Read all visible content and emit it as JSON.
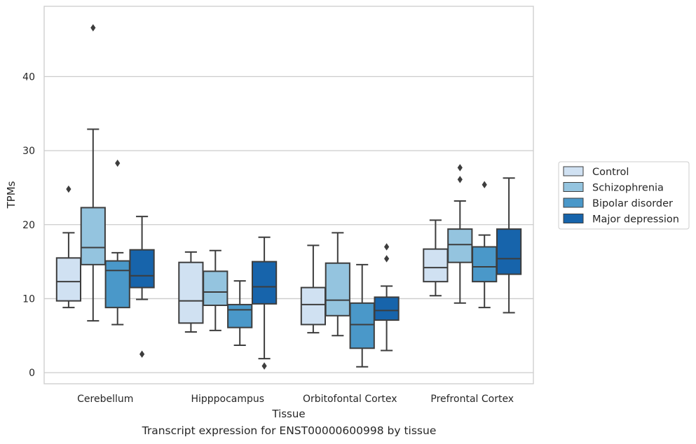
{
  "caption": "Transcript expression for ENST00000600998 by tissue",
  "chart_data": {
    "type": "boxplot",
    "xlabel": "Tissue",
    "ylabel": "TPMs",
    "ylim": [
      -1.5,
      49.5
    ],
    "yticks": [
      0,
      10,
      20,
      30,
      40
    ],
    "grid": "horizontal",
    "legend_position": "right",
    "categories": [
      "Cerebellum",
      "Hipppocampus",
      "Orbitofontal Cortex",
      "Prefrontal Cortex"
    ],
    "series": [
      {
        "name": "Control",
        "color": "#d0e1f2",
        "boxes": [
          {
            "whislo": 8.8,
            "q1": 9.7,
            "med": 12.3,
            "q3": 15.5,
            "whishi": 18.9,
            "fliers": [
              24.8
            ]
          },
          {
            "whislo": 5.5,
            "q1": 6.7,
            "med": 9.7,
            "q3": 14.9,
            "whishi": 16.3,
            "fliers": []
          },
          {
            "whislo": 5.4,
            "q1": 6.5,
            "med": 9.2,
            "q3": 11.5,
            "whishi": 17.2,
            "fliers": []
          },
          {
            "whislo": 10.4,
            "q1": 12.3,
            "med": 14.2,
            "q3": 16.7,
            "whishi": 20.6,
            "fliers": []
          }
        ]
      },
      {
        "name": "Schizophrenia",
        "color": "#94c4df",
        "boxes": [
          {
            "whislo": 7.0,
            "q1": 14.6,
            "med": 16.9,
            "q3": 22.3,
            "whishi": 32.9,
            "fliers": [
              46.6
            ]
          },
          {
            "whislo": 5.7,
            "q1": 9.1,
            "med": 10.9,
            "q3": 13.7,
            "whishi": 16.5,
            "fliers": []
          },
          {
            "whislo": 5.0,
            "q1": 7.7,
            "med": 9.8,
            "q3": 14.8,
            "whishi": 18.9,
            "fliers": []
          },
          {
            "whislo": 9.4,
            "q1": 14.9,
            "med": 17.3,
            "q3": 19.4,
            "whishi": 23.2,
            "fliers": [
              27.7,
              26.1
            ]
          }
        ]
      },
      {
        "name": "Bipolar disorder",
        "color": "#4a98c9",
        "boxes": [
          {
            "whislo": 6.5,
            "q1": 8.8,
            "med": 13.8,
            "q3": 15.1,
            "whishi": 16.2,
            "fliers": [
              28.3
            ]
          },
          {
            "whislo": 3.7,
            "q1": 6.1,
            "med": 8.5,
            "q3": 9.2,
            "whishi": 12.4,
            "fliers": []
          },
          {
            "whislo": 0.8,
            "q1": 3.3,
            "med": 6.5,
            "q3": 9.4,
            "whishi": 14.6,
            "fliers": []
          },
          {
            "whislo": 8.8,
            "q1": 12.3,
            "med": 14.3,
            "q3": 17.0,
            "whishi": 18.6,
            "fliers": [
              25.4
            ]
          }
        ]
      },
      {
        "name": "Major depression",
        "color": "#1764ab",
        "boxes": [
          {
            "whislo": 9.9,
            "q1": 11.5,
            "med": 13.1,
            "q3": 16.6,
            "whishi": 21.1,
            "fliers": [
              2.5
            ]
          },
          {
            "whislo": 1.9,
            "q1": 9.3,
            "med": 11.6,
            "q3": 15.0,
            "whishi": 18.3,
            "fliers": [
              0.9
            ]
          },
          {
            "whislo": 3.0,
            "q1": 7.1,
            "med": 8.4,
            "q3": 10.2,
            "whishi": 11.7,
            "fliers": [
              17.0,
              15.4
            ]
          },
          {
            "whislo": 8.1,
            "q1": 13.3,
            "med": 15.4,
            "q3": 19.4,
            "whishi": 26.3,
            "fliers": []
          }
        ]
      }
    ]
  }
}
